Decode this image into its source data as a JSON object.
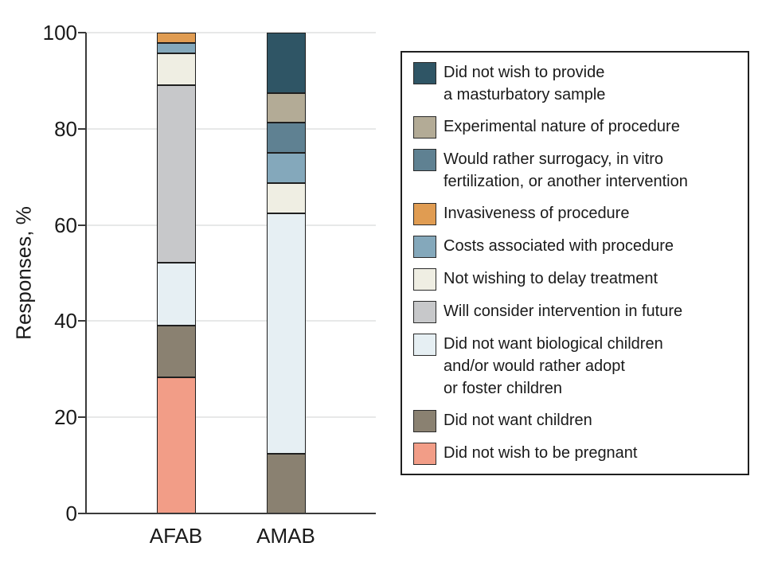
{
  "figure": {
    "kind": "stacked-bar-figure",
    "background": "#ffffff"
  },
  "colors": {
    "axis": "#3a3a3a",
    "grid": "#e7e8e8",
    "text": "#1a1a1a",
    "segment_border": "#1f1f1f"
  },
  "chart_data": {
    "type": "bar",
    "stacked": true,
    "title": "",
    "xlabel": "",
    "ylabel": "Responses, %",
    "ylim": [
      0,
      100
    ],
    "yticks": [
      0,
      20,
      40,
      60,
      80,
      100
    ],
    "grid": "horizontal",
    "legend_position": "right",
    "categories": [
      "AFAB",
      "AMAB"
    ],
    "series": [
      {
        "key": "did-not-wish-to-be-pregnant",
        "name": "Did not wish to be pregnant",
        "label_lines": [
          "Did not wish to be pregnant"
        ],
        "color": "#F29D87",
        "values": [
          28.26,
          0
        ]
      },
      {
        "key": "did-not-want-children",
        "name": "Did not want children",
        "label_lines": [
          "Did not want children"
        ],
        "color": "#8A8171",
        "values": [
          10.87,
          12.5
        ]
      },
      {
        "key": "no-biological-children-adopt-foster",
        "name": "Did not want biological children and/or would rather adopt or foster children",
        "label_lines": [
          "Did not want biological children",
          "and/or would rather adopt",
          "or foster children"
        ],
        "color": "#E6EFF3",
        "values": [
          13.04,
          50
        ]
      },
      {
        "key": "will-consider-intervention-in-future",
        "name": "Will consider intervention in future",
        "label_lines": [
          "Will consider intervention in future"
        ],
        "color": "#C7C8CA",
        "values": [
          36.96,
          0
        ]
      },
      {
        "key": "not-wishing-to-delay-treatment",
        "name": "Not wishing to delay treatment",
        "label_lines": [
          "Not wishing to delay treatment"
        ],
        "color": "#EFEEE3",
        "values": [
          6.52,
          6.25
        ]
      },
      {
        "key": "costs-associated-with-procedure",
        "name": "Costs associated with procedure",
        "label_lines": [
          "Costs associated with procedure"
        ],
        "color": "#84A8BB",
        "values": [
          2.17,
          6.25
        ]
      },
      {
        "key": "invasiveness-of-procedure",
        "name": "Invasiveness of procedure",
        "label_lines": [
          "Invasiveness of procedure"
        ],
        "color": "#E09C52",
        "values": [
          2.17,
          0
        ]
      },
      {
        "key": "would-rather-surrogacy-ivf-other",
        "name": "Would rather surrogacy, in vitro fertilization, or another intervention",
        "label_lines": [
          "Would rather surrogacy, in vitro",
          "fertilization, or another intervention"
        ],
        "color": "#5F8192",
        "values": [
          0,
          6.25
        ]
      },
      {
        "key": "experimental-nature-of-procedure",
        "name": "Experimental nature of procedure",
        "label_lines": [
          "Experimental nature of procedure"
        ],
        "color": "#B3AB96",
        "values": [
          0,
          6.25
        ]
      },
      {
        "key": "did-not-wish-to-provide-masturbatory-sample",
        "name": "Did not wish to provide a masturbatory sample",
        "label_lines": [
          "Did not wish to provide",
          "a masturbatory sample"
        ],
        "color": "#2F5565",
        "values": [
          0,
          12.5
        ]
      }
    ]
  }
}
